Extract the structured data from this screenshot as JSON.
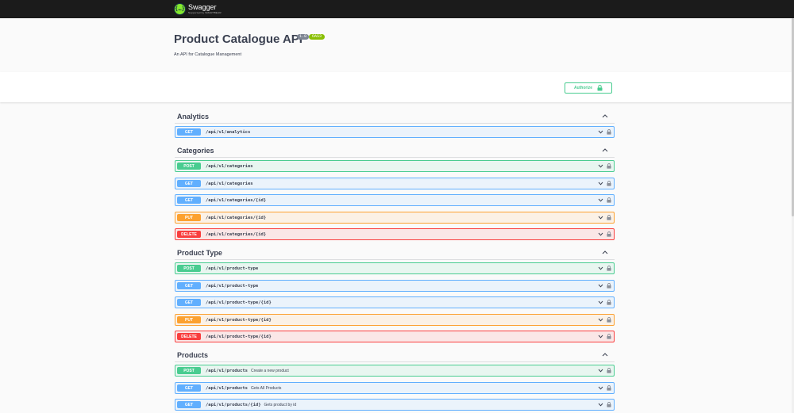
{
  "topbar": {
    "logo_mark": "{…}",
    "logo_name": "Swagger",
    "logo_sub": "Supported by SMARTBEAR"
  },
  "info": {
    "title": "Product Catalogue API",
    "version": "1.0",
    "oas": "OAS3",
    "description": "An API for Catalogue Management"
  },
  "authorize": {
    "label": "Authorize",
    "icon": "lock-icon"
  },
  "colors": {
    "get": "#61affe",
    "post": "#49cc90",
    "put": "#fca130",
    "delete": "#f93e3e"
  },
  "tags": [
    {
      "name": "Analytics",
      "operations": [
        {
          "method": "GET",
          "path": "/api/v1/analytics",
          "summary": ""
        }
      ]
    },
    {
      "name": "Categories",
      "operations": [
        {
          "method": "POST",
          "path": "/api/v1/categories",
          "summary": ""
        },
        {
          "method": "GET",
          "path": "/api/v1/categories",
          "summary": ""
        },
        {
          "method": "GET",
          "path": "/api/v1/categories/{id}",
          "summary": ""
        },
        {
          "method": "PUT",
          "path": "/api/v1/categories/{id}",
          "summary": ""
        },
        {
          "method": "DELETE",
          "path": "/api/v1/categories/{id}",
          "summary": ""
        }
      ]
    },
    {
      "name": "Product Type",
      "operations": [
        {
          "method": "POST",
          "path": "/api/v1/product-type",
          "summary": ""
        },
        {
          "method": "GET",
          "path": "/api/v1/product-type",
          "summary": ""
        },
        {
          "method": "GET",
          "path": "/api/v1/product-type/{id}",
          "summary": ""
        },
        {
          "method": "PUT",
          "path": "/api/v1/product-type/{id}",
          "summary": ""
        },
        {
          "method": "DELETE",
          "path": "/api/v1/product-type/{id}",
          "summary": ""
        }
      ]
    },
    {
      "name": "Products",
      "operations": [
        {
          "method": "POST",
          "path": "/api/v1/products",
          "summary": "Create a new product"
        },
        {
          "method": "GET",
          "path": "/api/v1/products",
          "summary": "Gets All Products"
        },
        {
          "method": "GET",
          "path": "/api/v1/products/{id}",
          "summary": "Gets product by id"
        }
      ]
    }
  ]
}
